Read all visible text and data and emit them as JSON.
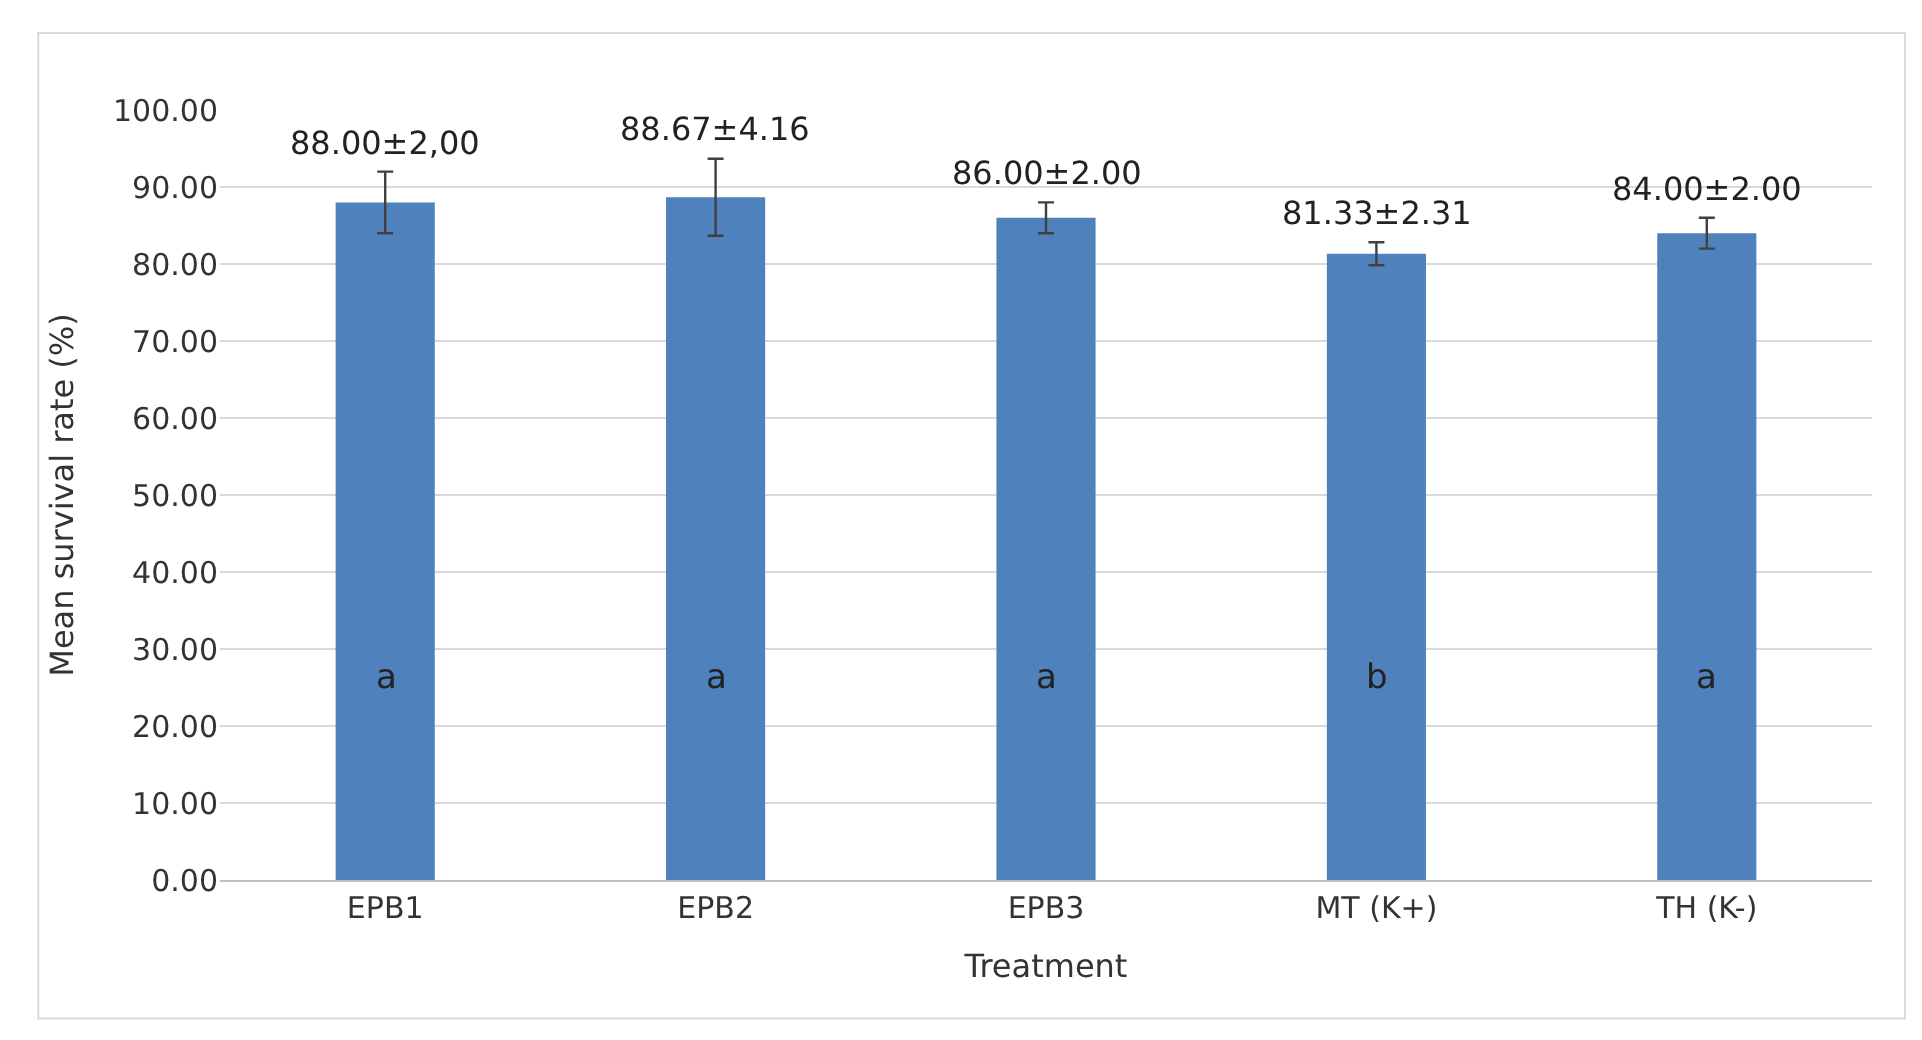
{
  "chart_data": {
    "type": "bar",
    "xlabel": "Treatment",
    "ylabel": "Mean survival rate (%)",
    "categories": [
      "EPB1",
      "EPB2",
      "EPB3",
      "MT (K+)",
      "TH (K-)"
    ],
    "values": [
      88.0,
      88.67,
      86.0,
      81.33,
      84.0
    ],
    "errors": [
      4,
      5,
      2,
      1.5,
      2
    ],
    "value_labels": [
      "88.00±2,00",
      "88.67±4.16",
      "86.00±2.00",
      "81.33±2.31",
      "84.00±2.00"
    ],
    "color": "#4f81bd",
    "ylim": [
      0,
      100
    ],
    "yticks": [
      {
        "value": 0,
        "label": "0.00"
      },
      {
        "value": 10,
        "label": "10.00"
      },
      {
        "value": 20,
        "label": "20.00"
      },
      {
        "value": 30,
        "label": "30.00"
      },
      {
        "value": 40,
        "label": "40.00"
      },
      {
        "value": 50,
        "label": "50.00"
      },
      {
        "value": 60,
        "label": "60.00"
      },
      {
        "value": 70,
        "label": "70.00"
      },
      {
        "value": 80,
        "label": "80.00"
      },
      {
        "value": 90,
        "label": "90.00"
      },
      {
        "value": 100,
        "label": "100.00"
      }
    ],
    "grid": "y",
    "annotations": [
      "a",
      "a",
      "a",
      "b",
      "a"
    ]
  }
}
